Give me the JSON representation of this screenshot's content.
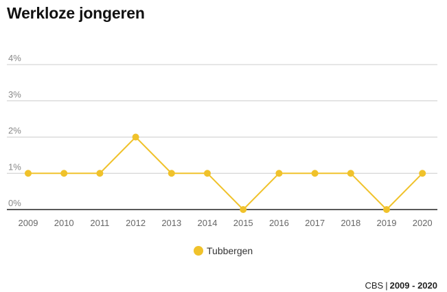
{
  "chart_data": {
    "type": "line",
    "title": "Werkloze jongeren",
    "categories": [
      "2009",
      "2010",
      "2011",
      "2012",
      "2013",
      "2014",
      "2015",
      "2016",
      "2017",
      "2018",
      "2019",
      "2020"
    ],
    "series": [
      {
        "name": "Tubbergen",
        "color": "#f0c22b",
        "values": [
          1,
          1,
          1,
          2,
          1,
          1,
          0,
          1,
          1,
          1,
          0,
          1
        ]
      }
    ],
    "yticks": [
      "0%",
      "1%",
      "2%",
      "3%",
      "4%"
    ],
    "ylim": [
      0,
      4
    ],
    "grid": true,
    "legend_position": "bottom-center"
  },
  "footer": {
    "source_label": "CBS",
    "separator": "|",
    "period": "2009 - 2020"
  },
  "colors": {
    "series": "#f0c22b",
    "grid": "#cccccc",
    "axis": "#222222"
  }
}
